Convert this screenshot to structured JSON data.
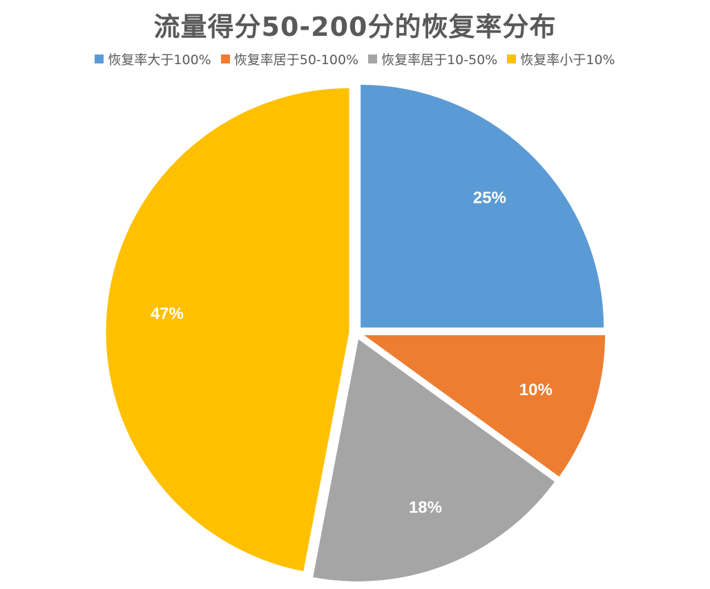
{
  "chart_data": {
    "type": "pie",
    "title": "流量得分50-200分的恢复率分布",
    "categories": [
      "恢复率大于100%",
      "恢复率居于50-100%",
      "恢复率居于10-50%",
      "恢复率小于10%"
    ],
    "values": [
      25,
      10,
      18,
      47
    ],
    "labels": [
      "25%",
      "10%",
      "18%",
      "47%"
    ],
    "colors": [
      "#5B9BD5",
      "#ED7D31",
      "#A5A5A5",
      "#FFC000"
    ],
    "legend_position": "top",
    "exploded": true
  }
}
